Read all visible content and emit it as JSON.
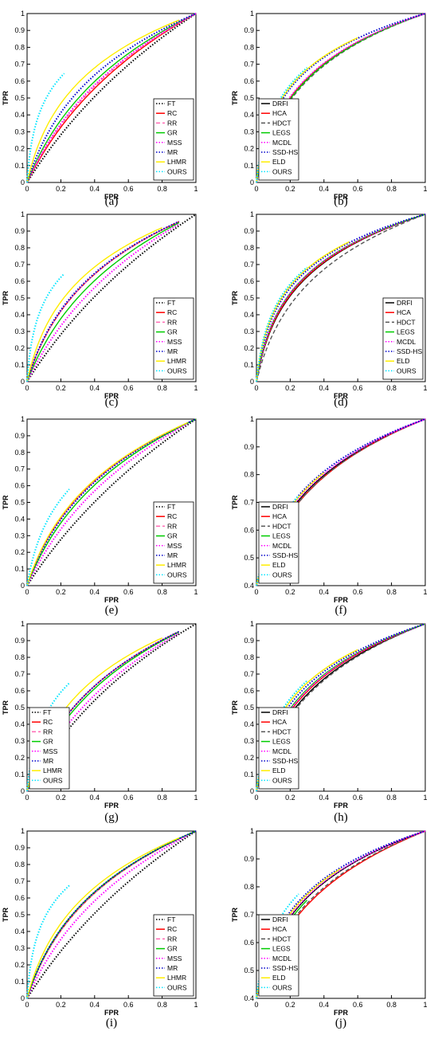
{
  "figure": {
    "panels": [
      {
        "letter": "(a)",
        "legend": "A",
        "legend_pos": "bottom-right",
        "ylabels": [
          "0",
          "0.1",
          "0.2",
          "0.3",
          "0.4",
          "0.5",
          "0.6",
          "0.7",
          "0.8",
          "0.9",
          "1"
        ]
      },
      {
        "letter": "(b)",
        "legend": "B",
        "legend_pos": "bottom-left",
        "ylabels": [
          "0",
          "0.1",
          "0.2",
          "0.3",
          "0.4",
          "0.5",
          "0.6",
          "0.7",
          "0.8",
          "0.9",
          "1"
        ]
      },
      {
        "letter": "(c)",
        "legend": "A",
        "legend_pos": "bottom-right",
        "ylabels": [
          "0",
          "0.1",
          "0.2",
          "0.3",
          "0.4",
          "0.5",
          "0.6",
          "0.7",
          "0.8",
          "0.9",
          "1"
        ]
      },
      {
        "letter": "(d)",
        "legend": "B",
        "legend_pos": "bottom-right",
        "ylabels": [
          "0",
          "0.1",
          "0.2",
          "0.3",
          "0.4",
          "0.5",
          "0.6",
          "0.7",
          "0.8",
          "0.9",
          "1"
        ]
      },
      {
        "letter": "(e)",
        "legend": "A",
        "legend_pos": "bottom-right",
        "ylabels": [
          "0",
          "0.1",
          "0.2",
          "0.3",
          "0.4",
          "0.5",
          "0.6",
          "0.7",
          "0.8",
          "0.9",
          "1"
        ]
      },
      {
        "letter": "(f)",
        "legend": "B",
        "legend_pos": "bottom-left",
        "ylabels": [
          "",
          "",
          "",
          "",
          "0.4",
          "0.5",
          "0.6",
          "0.7",
          "0.8",
          "0.9",
          "1"
        ]
      },
      {
        "letter": "(g)",
        "legend": "A",
        "legend_pos": "bottom-left",
        "ylabels": [
          "0",
          "0.1",
          "0.2",
          "0.3",
          "0.4",
          "0.5",
          "0.6",
          "0.7",
          "0.8",
          "0.9",
          "1"
        ]
      },
      {
        "letter": "(h)",
        "legend": "B",
        "legend_pos": "bottom-left",
        "ylabels": [
          "0",
          "0.1",
          "0.2",
          "0.3",
          "0.4",
          "0.5",
          "0.6",
          "0.7",
          "0.8",
          "0.9",
          "1"
        ]
      },
      {
        "letter": "(i)",
        "legend": "A",
        "legend_pos": "bottom-right",
        "ylabels": [
          "0",
          "0.1",
          "0.2",
          "0.3",
          "0.4",
          "0.5",
          "0.6",
          "0.7",
          "0.8",
          "0.9",
          "1"
        ]
      },
      {
        "letter": "(j)",
        "legend": "B",
        "legend_pos": "bottom-left",
        "ylabels": [
          "",
          "",
          "",
          "",
          "0.4",
          "0.5",
          "0.6",
          "0.7",
          "0.8",
          "0.9",
          "1"
        ]
      }
    ]
  },
  "chart_data": [
    {
      "panel": "(a)",
      "type": "line",
      "xlabel": "FPR",
      "ylabel": "TPR",
      "xlim": [
        0,
        1
      ],
      "ylim": [
        0,
        1
      ],
      "xticks": [
        "0",
        "0.2",
        "0.4",
        "0.6",
        "0.8",
        "1"
      ],
      "grid": false,
      "legend": "bottom-right",
      "series": [
        {
          "name": "FT",
          "color": "#000000",
          "style": "dot",
          "end": 1.0,
          "k": 1.4
        },
        {
          "name": "RC",
          "color": "#ff0000",
          "style": "solid",
          "end": 1.0,
          "k": 2.6
        },
        {
          "name": "RR",
          "color": "#ff69b4",
          "style": "dash",
          "end": 1.0,
          "k": 3.0
        },
        {
          "name": "GR",
          "color": "#00cc00",
          "style": "solid",
          "end": 1.0,
          "k": 4.2
        },
        {
          "name": "MSS",
          "color": "#ff00ff",
          "style": "dot",
          "end": 1.0,
          "k": 3.3
        },
        {
          "name": "MR",
          "color": "#0000cc",
          "style": "dot",
          "end": 1.0,
          "k": 6.5
        },
        {
          "name": "LHMR",
          "color": "#ffee00",
          "style": "solid",
          "end": 0.9,
          "k": 11
        },
        {
          "name": "OURS",
          "color": "#00e5ff",
          "style": "dot",
          "end": 0.22,
          "k": 60
        }
      ]
    },
    {
      "panel": "(b)",
      "type": "line",
      "xlabel": "FPR",
      "ylabel": "TPR",
      "xlim": [
        0,
        1
      ],
      "ylim": [
        0,
        1
      ],
      "xticks": [
        "0",
        "0.2",
        "0.4",
        "0.6",
        "0.8",
        "1"
      ],
      "grid": false,
      "legend": "bottom-left",
      "series": [
        {
          "name": "DRFI",
          "color": "#000000",
          "style": "solid",
          "end": 1.0,
          "k": 15
        },
        {
          "name": "HCA",
          "color": "#ff0000",
          "style": "solid",
          "end": 1.0,
          "k": 15
        },
        {
          "name": "HDCT",
          "color": "#555555",
          "style": "dash",
          "end": 1.0,
          "k": 13
        },
        {
          "name": "LEGS",
          "color": "#00cc00",
          "style": "solid",
          "end": 1.0,
          "k": 14
        },
        {
          "name": "MCDL",
          "color": "#ff00ff",
          "style": "dot",
          "end": 1.0,
          "k": 16
        },
        {
          "name": "SSD-HS",
          "color": "#0000cc",
          "style": "dot",
          "end": 1.0,
          "k": 27
        },
        {
          "name": "ELD",
          "color": "#ffee00",
          "style": "solid",
          "end": 0.6,
          "k": 30
        },
        {
          "name": "OURS",
          "color": "#00e5ff",
          "style": "dot",
          "end": 0.3,
          "k": 34
        }
      ]
    },
    {
      "panel": "(c)",
      "type": "line",
      "xlabel": "FPR",
      "ylabel": "TPR",
      "xlim": [
        0,
        1
      ],
      "ylim": [
        0,
        1
      ],
      "xticks": [
        "0",
        "0.2",
        "0.4",
        "0.6",
        "0.8",
        "1"
      ],
      "grid": false,
      "legend": "bottom-right",
      "series": [
        {
          "name": "FT",
          "color": "#000000",
          "style": "dot",
          "end": 1.0,
          "k": 1.4
        },
        {
          "name": "RC",
          "color": "#ff0000",
          "style": "solid",
          "end": 0.9,
          "k": 7
        },
        {
          "name": "RR",
          "color": "#ff69b4",
          "style": "dash",
          "end": 0.9,
          "k": 7
        },
        {
          "name": "GR",
          "color": "#00cc00",
          "style": "solid",
          "end": 0.9,
          "k": 4.5
        },
        {
          "name": "MSS",
          "color": "#ff00ff",
          "style": "dot",
          "end": 0.9,
          "k": 2.8
        },
        {
          "name": "MR",
          "color": "#0000cc",
          "style": "dot",
          "end": 0.9,
          "k": 7.5
        },
        {
          "name": "LHMR",
          "color": "#ffee00",
          "style": "solid",
          "end": 0.8,
          "k": 12
        },
        {
          "name": "OURS",
          "color": "#00e5ff",
          "style": "dot",
          "end": 0.22,
          "k": 60
        }
      ]
    },
    {
      "panel": "(d)",
      "type": "line",
      "xlabel": "FPR",
      "ylabel": "TPR",
      "xlim": [
        0,
        1
      ],
      "ylim": [
        0,
        1
      ],
      "xticks": [
        "0",
        "0.2",
        "0.4",
        "0.6",
        "0.8",
        "1"
      ],
      "grid": false,
      "legend": "bottom-right",
      "series": [
        {
          "name": "DRFI",
          "color": "#000000",
          "style": "solid",
          "end": 1.0,
          "k": 17
        },
        {
          "name": "HCA",
          "color": "#ff0000",
          "style": "solid",
          "end": 1.0,
          "k": 18
        },
        {
          "name": "HDCT",
          "color": "#555555",
          "style": "dash",
          "end": 1.0,
          "k": 10
        },
        {
          "name": "LEGS",
          "color": "#00cc00",
          "style": "solid",
          "end": 1.0,
          "k": 20
        },
        {
          "name": "MCDL",
          "color": "#ff00ff",
          "style": "dot",
          "end": 1.0,
          "k": 20
        },
        {
          "name": "SSD-HS",
          "color": "#0000cc",
          "style": "dot",
          "end": 1.0,
          "k": 28
        },
        {
          "name": "ELD",
          "color": "#ffee00",
          "style": "solid",
          "end": 0.55,
          "k": 32
        },
        {
          "name": "OURS",
          "color": "#00e5ff",
          "style": "dot",
          "end": 0.3,
          "k": 36
        }
      ]
    },
    {
      "panel": "(e)",
      "type": "line",
      "xlabel": "FPR",
      "ylabel": "TPR",
      "xlim": [
        0,
        1
      ],
      "ylim": [
        0,
        1
      ],
      "xticks": [
        "0",
        "0.2",
        "0.4",
        "0.6",
        "0.8",
        "1"
      ],
      "grid": false,
      "legend": "bottom-right",
      "series": [
        {
          "name": "FT",
          "color": "#000000",
          "style": "dot",
          "end": 1.0,
          "k": 1.3
        },
        {
          "name": "RC",
          "color": "#ff0000",
          "style": "solid",
          "end": 1.0,
          "k": 6
        },
        {
          "name": "RR",
          "color": "#ff69b4",
          "style": "dash",
          "end": 1.0,
          "k": 6
        },
        {
          "name": "GR",
          "color": "#00cc00",
          "style": "solid",
          "end": 1.0,
          "k": 4.5
        },
        {
          "name": "MSS",
          "color": "#ff00ff",
          "style": "dot",
          "end": 0.95,
          "k": 3.0
        },
        {
          "name": "MR",
          "color": "#0000cc",
          "style": "dot",
          "end": 1.0,
          "k": 5.5
        },
        {
          "name": "LHMR",
          "color": "#ffee00",
          "style": "solid",
          "end": 0.95,
          "k": 6.5
        },
        {
          "name": "OURS",
          "color": "#00e5ff",
          "style": "dot",
          "end": 0.25,
          "k": 18
        }
      ]
    },
    {
      "panel": "(f)",
      "type": "line",
      "xlabel": "FPR",
      "ylabel": "TPR",
      "xlim": [
        0,
        1
      ],
      "ylim": [
        0.4,
        1
      ],
      "xticks": [
        "0",
        "0.2",
        "0.4",
        "0.6",
        "0.8",
        "1"
      ],
      "grid": false,
      "legend": "bottom-left",
      "series": [
        {
          "name": "DRFI",
          "color": "#000000",
          "style": "solid",
          "end": 1.0,
          "k": 9
        },
        {
          "name": "HCA",
          "color": "#ff0000",
          "style": "solid",
          "end": 1.0,
          "k": 8
        },
        {
          "name": "HDCT",
          "color": "#555555",
          "style": "dash",
          "end": 1.0,
          "k": 8
        },
        {
          "name": "LEGS",
          "color": "#00cc00",
          "style": "solid",
          "end": 0.2,
          "k": 9
        },
        {
          "name": "MCDL",
          "color": "#ff00ff",
          "style": "dot",
          "end": 1.0,
          "k": 10
        },
        {
          "name": "SSD-HS",
          "color": "#0000cc",
          "style": "dot",
          "end": 1.0,
          "k": 12
        },
        {
          "name": "ELD",
          "color": "#ffee00",
          "style": "solid",
          "end": 0.4,
          "k": 11
        },
        {
          "name": "OURS",
          "color": "#00e5ff",
          "style": "dot",
          "end": 0.25,
          "k": 12
        }
      ]
    },
    {
      "panel": "(g)",
      "type": "line",
      "xlabel": "FPR",
      "ylabel": "TPR",
      "xlim": [
        0,
        1
      ],
      "ylim": [
        0,
        1
      ],
      "xticks": [
        "0",
        "0.2",
        "0.4",
        "0.6",
        "0.8",
        "1"
      ],
      "grid": false,
      "legend": "bottom-left",
      "series": [
        {
          "name": "FT",
          "color": "#000000",
          "style": "dot",
          "end": 1.0,
          "k": 2.2
        },
        {
          "name": "RC",
          "color": "#ff0000",
          "style": "solid",
          "end": 0.9,
          "k": 6
        },
        {
          "name": "RR",
          "color": "#ff69b4",
          "style": "dash",
          "end": 0.9,
          "k": 6
        },
        {
          "name": "GR",
          "color": "#00cc00",
          "style": "solid",
          "end": 0.9,
          "k": 5
        },
        {
          "name": "MSS",
          "color": "#ff00ff",
          "style": "dot",
          "end": 0.9,
          "k": 3.2
        },
        {
          "name": "MR",
          "color": "#0000cc",
          "style": "dot",
          "end": 0.9,
          "k": 6
        },
        {
          "name": "LHMR",
          "color": "#ffee00",
          "style": "solid",
          "end": 0.8,
          "k": 10
        },
        {
          "name": "OURS",
          "color": "#00e5ff",
          "style": "dot",
          "end": 0.25,
          "k": 40
        }
      ]
    },
    {
      "panel": "(h)",
      "type": "line",
      "xlabel": "FPR",
      "ylabel": "TPR",
      "xlim": [
        0,
        1
      ],
      "ylim": [
        0,
        1
      ],
      "xticks": [
        "0",
        "0.2",
        "0.4",
        "0.6",
        "0.8",
        "1"
      ],
      "grid": false,
      "legend": "bottom-left",
      "series": [
        {
          "name": "DRFI",
          "color": "#000000",
          "style": "solid",
          "end": 1.0,
          "k": 10
        },
        {
          "name": "HCA",
          "color": "#ff0000",
          "style": "solid",
          "end": 1.0,
          "k": 12
        },
        {
          "name": "HDCT",
          "color": "#555555",
          "style": "dash",
          "end": 1.0,
          "k": 9
        },
        {
          "name": "LEGS",
          "color": "#00cc00",
          "style": "solid",
          "end": 1.0,
          "k": 14
        },
        {
          "name": "MCDL",
          "color": "#ff00ff",
          "style": "dot",
          "end": 1.0,
          "k": 13
        },
        {
          "name": "SSD-HS",
          "color": "#0000cc",
          "style": "dot",
          "end": 1.0,
          "k": 18
        },
        {
          "name": "ELD",
          "color": "#ffee00",
          "style": "solid",
          "end": 0.6,
          "k": 22
        },
        {
          "name": "OURS",
          "color": "#00e5ff",
          "style": "dot",
          "end": 0.3,
          "k": 26
        }
      ]
    },
    {
      "panel": "(i)",
      "type": "line",
      "xlabel": "FPR",
      "ylabel": "TPR",
      "xlim": [
        0,
        1
      ],
      "ylim": [
        0,
        1
      ],
      "xticks": [
        "0",
        "0.2",
        "0.4",
        "0.6",
        "0.8",
        "1"
      ],
      "grid": false,
      "legend": "bottom-right",
      "series": [
        {
          "name": "FT",
          "color": "#000000",
          "style": "dot",
          "end": 1.0,
          "k": 1.4
        },
        {
          "name": "RC",
          "color": "#ff0000",
          "style": "solid",
          "end": 1.0,
          "k": 6
        },
        {
          "name": "RR",
          "color": "#ff69b4",
          "style": "dash",
          "end": 1.0,
          "k": 6
        },
        {
          "name": "GR",
          "color": "#00cc00",
          "style": "solid",
          "end": 1.0,
          "k": 6.5
        },
        {
          "name": "MSS",
          "color": "#ff00ff",
          "style": "dot",
          "end": 0.95,
          "k": 3.5
        },
        {
          "name": "MR",
          "color": "#0000cc",
          "style": "dot",
          "end": 1.0,
          "k": 6.5
        },
        {
          "name": "LHMR",
          "color": "#ffee00",
          "style": "solid",
          "end": 0.9,
          "k": 9
        },
        {
          "name": "OURS",
          "color": "#00e5ff",
          "style": "dot",
          "end": 0.25,
          "k": 60
        }
      ]
    },
    {
      "panel": "(j)",
      "type": "line",
      "xlabel": "FPR",
      "ylabel": "TPR",
      "xlim": [
        0,
        1
      ],
      "ylim": [
        0.4,
        1
      ],
      "xticks": [
        "0",
        "0.2",
        "0.4",
        "0.6",
        "0.8",
        "1"
      ],
      "grid": false,
      "legend": "bottom-left",
      "series": [
        {
          "name": "DRFI",
          "color": "#000000",
          "style": "solid",
          "end": 1.0,
          "k": 13
        },
        {
          "name": "HCA",
          "color": "#ff0000",
          "style": "solid",
          "end": 1.0,
          "k": 8
        },
        {
          "name": "HDCT",
          "color": "#555555",
          "style": "dash",
          "end": 1.0,
          "k": 9
        },
        {
          "name": "LEGS",
          "color": "#00cc00",
          "style": "solid",
          "end": 0.3,
          "k": 11
        },
        {
          "name": "MCDL",
          "color": "#ff00ff",
          "style": "dot",
          "end": 1.0,
          "k": 14
        },
        {
          "name": "SSD-HS",
          "color": "#0000cc",
          "style": "dot",
          "end": 1.0,
          "k": 18
        },
        {
          "name": "ELD",
          "color": "#ffee00",
          "style": "solid",
          "end": 0.5,
          "k": 16
        },
        {
          "name": "OURS",
          "color": "#00e5ff",
          "style": "dot",
          "end": 0.25,
          "k": 30
        }
      ]
    }
  ]
}
